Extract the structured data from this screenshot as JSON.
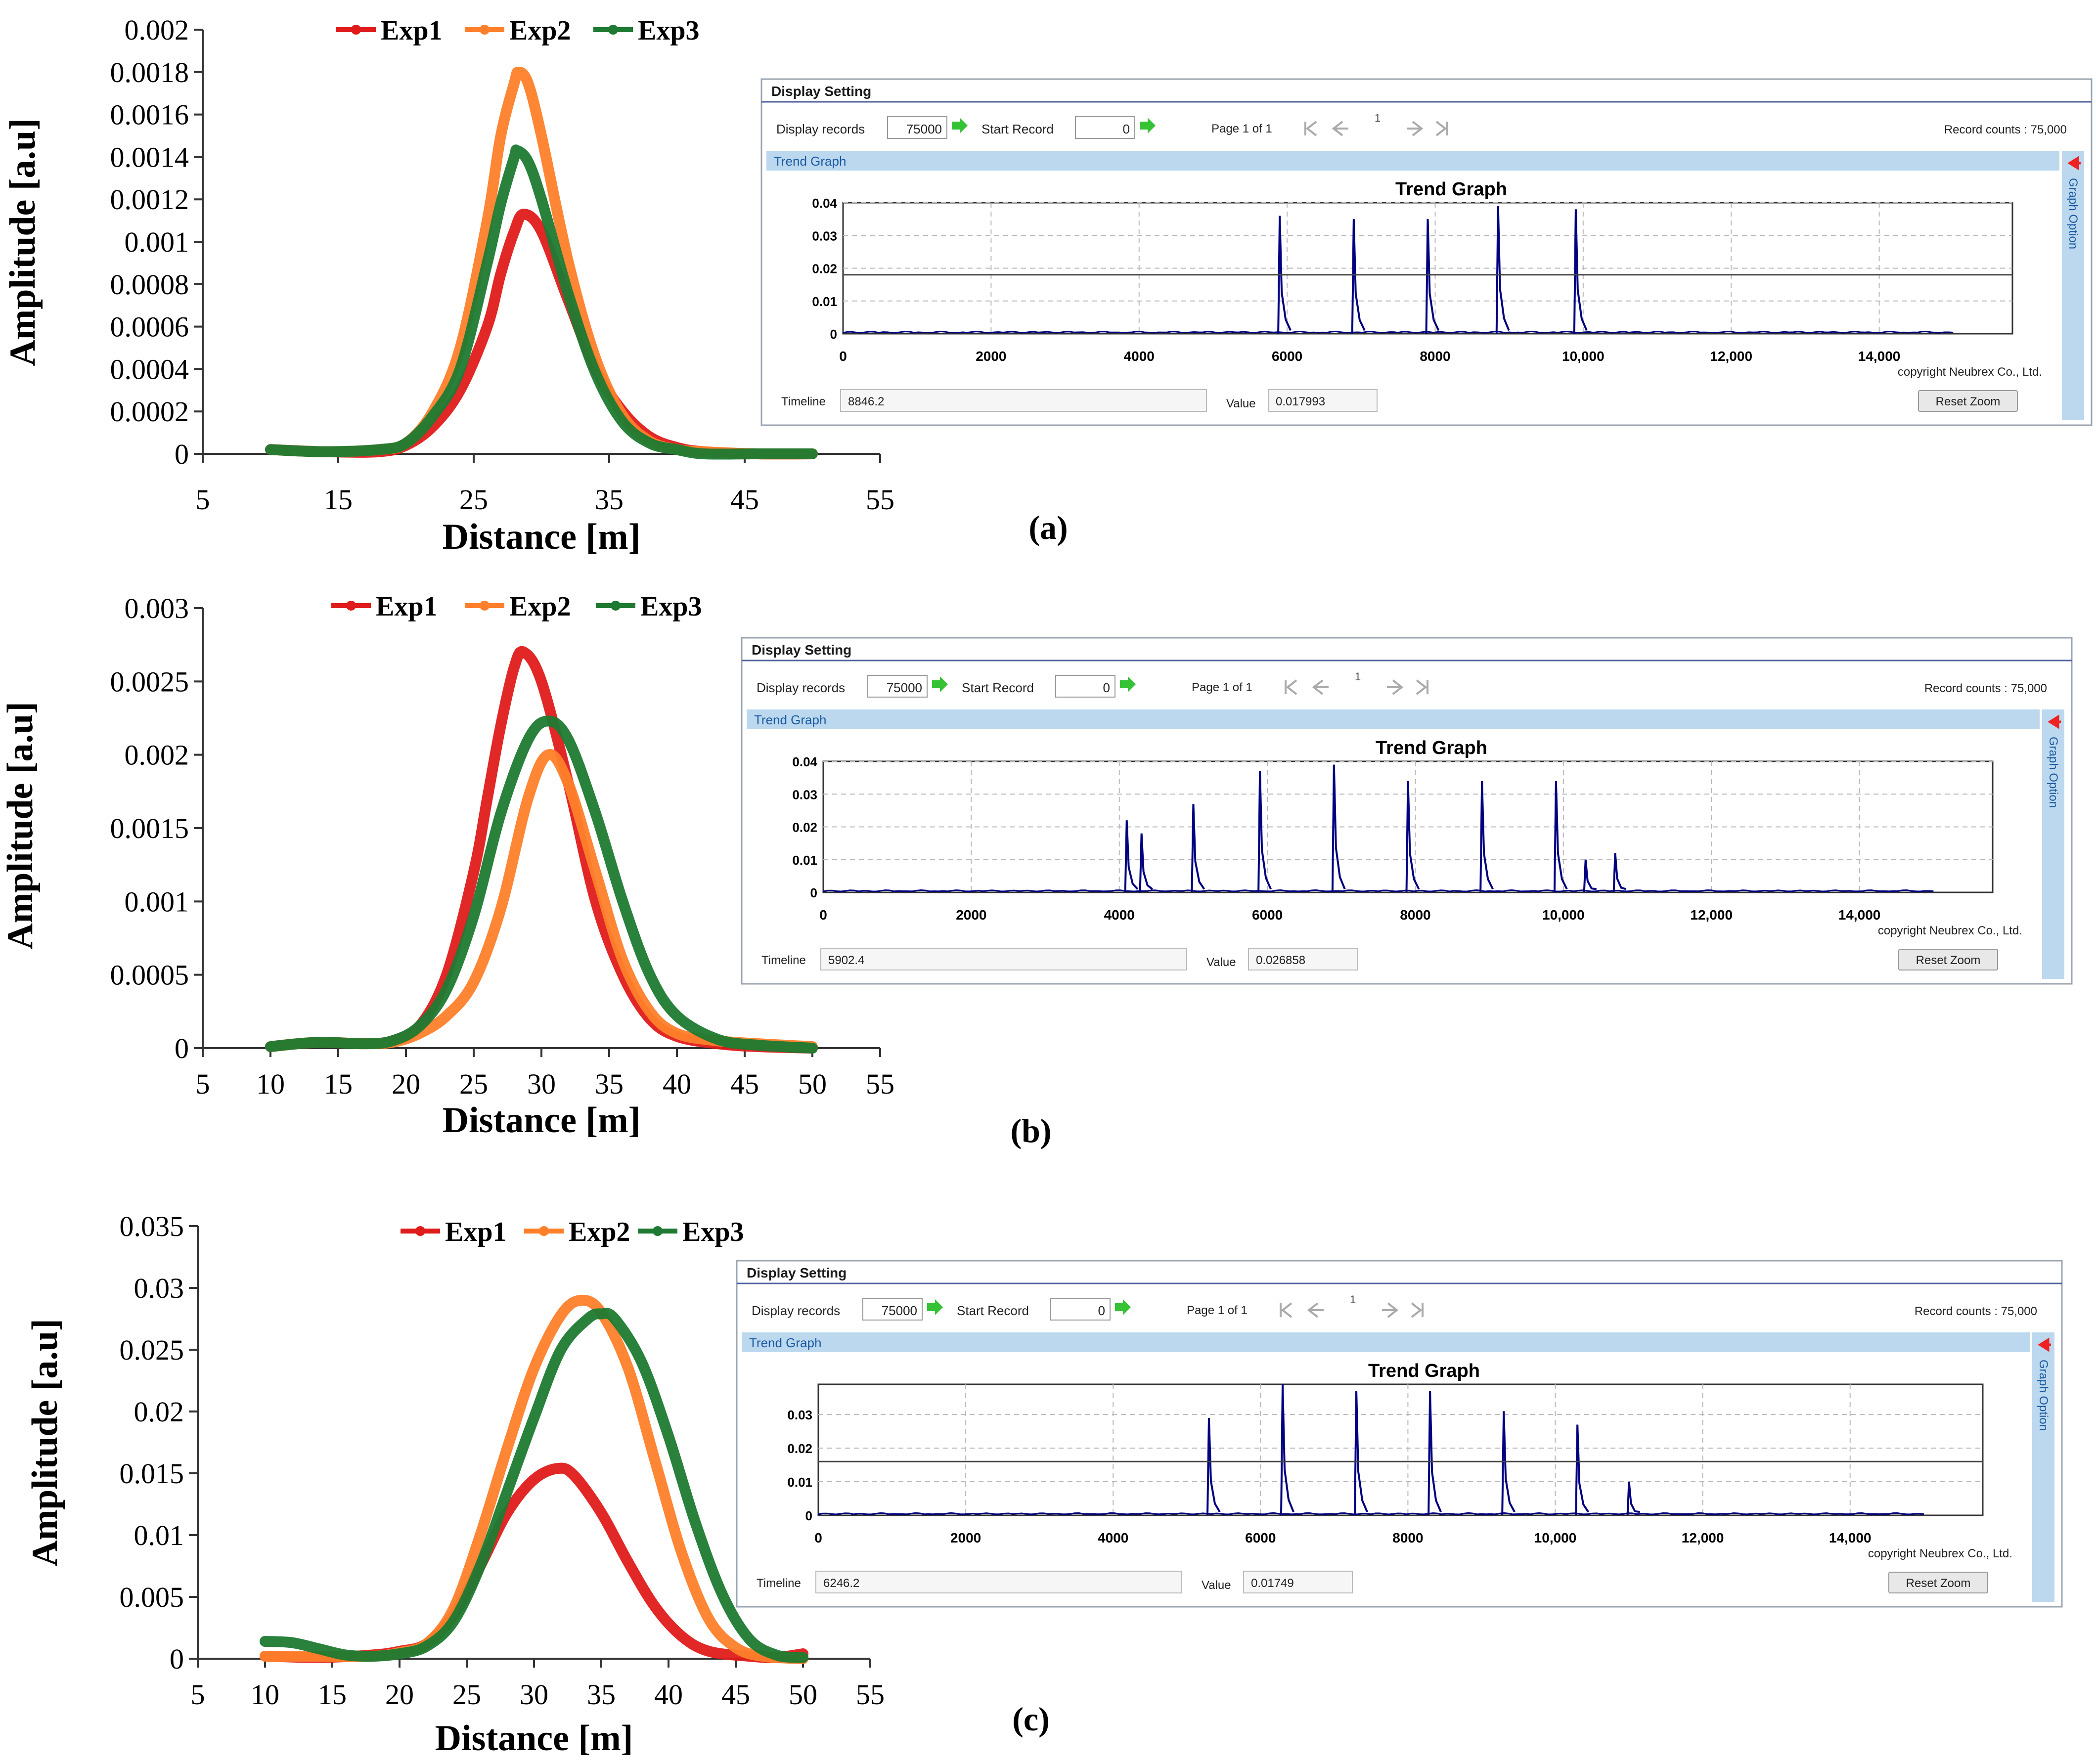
{
  "colors": {
    "exp1": "#e01b1b",
    "exp2": "#ff7f2a",
    "exp3": "#1e7a32",
    "trend": "#000080",
    "panelBlue": "#bcd8ef",
    "gridGray": "#b8b8b8"
  },
  "chart_data": [
    {
      "type": "line",
      "panel_label": "(a)",
      "xlabel": "Distance [m]",
      "ylabel": "Amplitude [a.u]",
      "xlim": [
        5,
        55
      ],
      "ylim": [
        0,
        0.002
      ],
      "xticks": [
        "5",
        "15",
        "25",
        "35",
        "45",
        "55"
      ],
      "yticks": [
        "0",
        "0.0002",
        "0.0004",
        "0.0006",
        "0.0008",
        "0.001",
        "0.0012",
        "0.0014",
        "0.0016",
        "0.0018",
        "0.002"
      ],
      "legend": [
        "Exp1",
        "Exp2",
        "Exp3"
      ],
      "series": [
        {
          "name": "Exp1",
          "points": [
            [
              10,
              2e-05
            ],
            [
              14,
              1e-05
            ],
            [
              18,
              1e-05
            ],
            [
              20,
              4e-05
            ],
            [
              22,
              0.00013
            ],
            [
              24,
              0.0003
            ],
            [
              26,
              0.0006
            ],
            [
              27,
              0.00085
            ],
            [
              28,
              0.00105
            ],
            [
              28.7,
              0.00113
            ],
            [
              30,
              0.00105
            ],
            [
              32,
              0.00072
            ],
            [
              34,
              0.0004
            ],
            [
              36,
              0.0002
            ],
            [
              38,
              8e-05
            ],
            [
              40,
              3e-05
            ],
            [
              42,
              1e-05
            ],
            [
              46,
              0
            ],
            [
              50,
              0
            ]
          ]
        },
        {
          "name": "Exp2",
          "points": [
            [
              10,
              2e-05
            ],
            [
              14,
              1e-05
            ],
            [
              18,
              2e-05
            ],
            [
              20,
              5e-05
            ],
            [
              22,
              0.0002
            ],
            [
              24,
              0.0005
            ],
            [
              26,
              0.0011
            ],
            [
              27,
              0.0015
            ],
            [
              28,
              0.00175
            ],
            [
              28.3,
              0.0018
            ],
            [
              29,
              0.00175
            ],
            [
              30,
              0.0015
            ],
            [
              32,
              0.0009
            ],
            [
              34,
              0.00045
            ],
            [
              36,
              0.00018
            ],
            [
              38,
              6e-05
            ],
            [
              40,
              2e-05
            ],
            [
              42,
              1e-05
            ],
            [
              46,
              0
            ],
            [
              50,
              0
            ]
          ]
        },
        {
          "name": "Exp3",
          "points": [
            [
              10,
              2e-05
            ],
            [
              14,
              1e-05
            ],
            [
              18,
              2e-05
            ],
            [
              20,
              5e-05
            ],
            [
              22,
              0.00018
            ],
            [
              24,
              0.0004
            ],
            [
              26,
              0.0009
            ],
            [
              27,
              0.00118
            ],
            [
              28,
              0.0014
            ],
            [
              28.2,
              0.00143
            ],
            [
              29,
              0.00138
            ],
            [
              30,
              0.0012
            ],
            [
              32,
              0.00075
            ],
            [
              34,
              0.00038
            ],
            [
              36,
              0.00015
            ],
            [
              38,
              5e-05
            ],
            [
              40,
              2e-05
            ],
            [
              42,
              0
            ],
            [
              46,
              0
            ],
            [
              50,
              0
            ]
          ]
        }
      ]
    },
    {
      "type": "line",
      "panel_label": "(b)",
      "xlabel": "Distance [m]",
      "ylabel": "Amplitude [a.u]",
      "xlim": [
        5,
        55
      ],
      "ylim": [
        0,
        0.003
      ],
      "xticks": [
        "5",
        "10",
        "15",
        "20",
        "25",
        "30",
        "35",
        "40",
        "45",
        "50",
        "55"
      ],
      "yticks": [
        "0",
        "0.0005",
        "0.001",
        "0.0015",
        "0.002",
        "0.0025",
        "0.003"
      ],
      "legend": [
        "Exp1",
        "Exp2",
        "Exp3"
      ],
      "series": [
        {
          "name": "Exp1",
          "points": [
            [
              10,
              1e-05
            ],
            [
              12,
              3e-05
            ],
            [
              14,
              4e-05
            ],
            [
              17,
              3e-05
            ],
            [
              19,
              5e-05
            ],
            [
              21,
              0.00015
            ],
            [
              23,
              0.0005
            ],
            [
              25,
              0.0012
            ],
            [
              26,
              0.0017
            ],
            [
              27,
              0.0022
            ],
            [
              28,
              0.0026
            ],
            [
              28.7,
              0.0027
            ],
            [
              30,
              0.0025
            ],
            [
              32,
              0.0018
            ],
            [
              34,
              0.001
            ],
            [
              36,
              0.0005
            ],
            [
              38,
              0.0002
            ],
            [
              40,
              8e-05
            ],
            [
              43,
              3e-05
            ],
            [
              46,
              1e-05
            ],
            [
              50,
              0
            ]
          ]
        },
        {
          "name": "Exp2",
          "points": [
            [
              10,
              1e-05
            ],
            [
              12,
              3e-05
            ],
            [
              14,
              4e-05
            ],
            [
              17,
              3e-05
            ],
            [
              19,
              4e-05
            ],
            [
              21,
              0.0001
            ],
            [
              23,
              0.00022
            ],
            [
              25,
              0.00045
            ],
            [
              27,
              0.00095
            ],
            [
              29,
              0.0017
            ],
            [
              30.5,
              0.002
            ],
            [
              32,
              0.0018
            ],
            [
              34,
              0.0012
            ],
            [
              36,
              0.0006
            ],
            [
              38,
              0.00025
            ],
            [
              40,
              0.0001
            ],
            [
              43,
              5e-05
            ],
            [
              46,
              3e-05
            ],
            [
              50,
              1e-05
            ]
          ]
        },
        {
          "name": "Exp3",
          "points": [
            [
              10,
              1e-05
            ],
            [
              12,
              3e-05
            ],
            [
              14,
              4e-05
            ],
            [
              17,
              3e-05
            ],
            [
              19,
              5e-05
            ],
            [
              21,
              0.00015
            ],
            [
              23,
              0.0004
            ],
            [
              25,
              0.0009
            ],
            [
              27,
              0.0016
            ],
            [
              29,
              0.0021
            ],
            [
              30.5,
              0.00223
            ],
            [
              32,
              0.0021
            ],
            [
              34,
              0.0016
            ],
            [
              36,
              0.001
            ],
            [
              38,
              0.0005
            ],
            [
              40,
              0.00022
            ],
            [
              43,
              6e-05
            ],
            [
              46,
              2e-05
            ],
            [
              50,
              0
            ]
          ]
        }
      ]
    },
    {
      "type": "line",
      "panel_label": "(c)",
      "xlabel": "Distance [m]",
      "ylabel": "Amplitude [a.u]",
      "xlim": [
        5,
        55
      ],
      "ylim": [
        0,
        0.035
      ],
      "xticks": [
        "5",
        "10",
        "15",
        "20",
        "25",
        "30",
        "35",
        "40",
        "45",
        "50",
        "55"
      ],
      "yticks": [
        "0",
        "0.005",
        "0.01",
        "0.015",
        "0.02",
        "0.025",
        "0.03",
        "0.035"
      ],
      "legend": [
        "Exp1",
        "Exp2",
        "Exp3"
      ],
      "series": [
        {
          "name": "Exp1",
          "points": [
            [
              10,
              0.0002
            ],
            [
              14,
              0.0001
            ],
            [
              18,
              0.0003
            ],
            [
              20,
              0.0006
            ],
            [
              22,
              0.0012
            ],
            [
              24,
              0.0035
            ],
            [
              26,
              0.0075
            ],
            [
              28,
              0.0118
            ],
            [
              30,
              0.0145
            ],
            [
              31.8,
              0.0154
            ],
            [
              33,
              0.0148
            ],
            [
              35,
              0.0118
            ],
            [
              37,
              0.0078
            ],
            [
              39,
              0.0042
            ],
            [
              41,
              0.0018
            ],
            [
              43,
              0.0006
            ],
            [
              46,
              0.0002
            ],
            [
              48,
              0.0001
            ],
            [
              50,
              0.0004
            ]
          ]
        },
        {
          "name": "Exp2",
          "points": [
            [
              10,
              0.0002
            ],
            [
              14,
              0.0002
            ],
            [
              18,
              0.0002
            ],
            [
              20,
              0.0005
            ],
            [
              22,
              0.0012
            ],
            [
              24,
              0.004
            ],
            [
              26,
              0.01
            ],
            [
              28,
              0.017
            ],
            [
              30,
              0.0235
            ],
            [
              32,
              0.0278
            ],
            [
              33.5,
              0.029
            ],
            [
              35,
              0.028
            ],
            [
              37,
              0.0235
            ],
            [
              39,
              0.016
            ],
            [
              41,
              0.0085
            ],
            [
              43,
              0.0032
            ],
            [
              45,
              0.0009
            ],
            [
              47,
              0.0002
            ],
            [
              50,
              0
            ]
          ]
        },
        {
          "name": "Exp3",
          "points": [
            [
              10,
              0.0014
            ],
            [
              12,
              0.0013
            ],
            [
              14,
              0.0008
            ],
            [
              16,
              0.0003
            ],
            [
              18,
              0.0002
            ],
            [
              20,
              0.0004
            ],
            [
              22,
              0.001
            ],
            [
              24,
              0.003
            ],
            [
              26,
              0.0075
            ],
            [
              28,
              0.0135
            ],
            [
              30,
              0.0195
            ],
            [
              32,
              0.025
            ],
            [
              34,
              0.0275
            ],
            [
              35,
              0.0279
            ],
            [
              36,
              0.0275
            ],
            [
              38,
              0.024
            ],
            [
              40,
              0.018
            ],
            [
              42,
              0.011
            ],
            [
              44,
              0.0052
            ],
            [
              46,
              0.0016
            ],
            [
              48,
              0.0003
            ],
            [
              50,
              0.0001
            ]
          ]
        }
      ]
    },
    {
      "type": "bar",
      "title": "Trend Graph",
      "xticks": [
        "0",
        "2000",
        "4000",
        "6000",
        "8000",
        "10,000",
        "12,000",
        "14,000"
      ],
      "yticks": [
        "0",
        "0.01",
        "0.02",
        "0.03",
        "0.04"
      ],
      "xlim": [
        0,
        15800
      ],
      "ylim": [
        0,
        0.04
      ],
      "peaks": [
        [
          5900,
          0.036
        ],
        [
          6900,
          0.035
        ],
        [
          7900,
          0.035
        ],
        [
          8850,
          0.039
        ],
        [
          9900,
          0.038
        ]
      ],
      "hline": 0.018
    },
    {
      "type": "bar",
      "title": "Trend Graph",
      "xticks": [
        "0",
        "2000",
        "4000",
        "6000",
        "8000",
        "10,000",
        "12,000",
        "14,000"
      ],
      "yticks": [
        "0",
        "0.01",
        "0.02",
        "0.03",
        "0.04"
      ],
      "xlim": [
        0,
        15800
      ],
      "ylim": [
        0,
        0.04
      ],
      "peaks": [
        [
          4100,
          0.022
        ],
        [
          4300,
          0.018
        ],
        [
          5000,
          0.027
        ],
        [
          5900,
          0.037
        ],
        [
          6900,
          0.039
        ],
        [
          7900,
          0.034
        ],
        [
          8900,
          0.034
        ],
        [
          9900,
          0.034
        ],
        [
          10300,
          0.01
        ],
        [
          10700,
          0.012
        ]
      ]
    },
    {
      "type": "bar",
      "title": "Trend Graph",
      "xticks": [
        "0",
        "2000",
        "4000",
        "6000",
        "8000",
        "10,000",
        "12,000",
        "14,000"
      ],
      "yticks": [
        "0",
        "0.01",
        "0.02",
        "0.03"
      ],
      "xlim": [
        0,
        15800
      ],
      "ylim": [
        0,
        0.039
      ],
      "peaks": [
        [
          5300,
          0.029
        ],
        [
          6300,
          0.039
        ],
        [
          7300,
          0.037
        ],
        [
          8300,
          0.037
        ],
        [
          9300,
          0.031
        ],
        [
          10300,
          0.027
        ],
        [
          11000,
          0.01
        ]
      ],
      "hline": 0.016
    }
  ],
  "screens": [
    {
      "display_setting": "Display Setting",
      "display_records_label": "Display records",
      "display_records_value": "75000",
      "start_record_label": "Start Record",
      "start_record_value": "0",
      "page_info": "Page 1 of 1",
      "page_number": "1",
      "record_counts": "Record counts :  75,000",
      "trend_tab": "Trend Graph",
      "graph_option": "Graph Option",
      "copyright": "copyright Neubrex Co., Ltd.",
      "timeline_label": "Timeline",
      "timeline_value": "8846.2",
      "value_label": "Value",
      "value_value": "0.017993",
      "reset_zoom": "Reset Zoom"
    },
    {
      "display_setting": "Display Setting",
      "display_records_label": "Display records",
      "display_records_value": "75000",
      "start_record_label": "Start Record",
      "start_record_value": "0",
      "page_info": "Page 1 of 1",
      "page_number": "1",
      "record_counts": "Record counts :  75,000",
      "trend_tab": "Trend Graph",
      "graph_option": "Graph Option",
      "copyright": "copyright Neubrex Co., Ltd.",
      "timeline_label": "Timeline",
      "timeline_value": "5902.4",
      "value_label": "Value",
      "value_value": "0.026858",
      "reset_zoom": "Reset Zoom"
    },
    {
      "display_setting": "Display Setting",
      "display_records_label": "Display records",
      "display_records_value": "75000",
      "start_record_label": "Start Record",
      "start_record_value": "0",
      "page_info": "Page 1 of 1",
      "page_number": "1",
      "record_counts": "Record counts :  75,000",
      "trend_tab": "Trend Graph",
      "graph_option": "Graph Option",
      "copyright": "copyright Neubrex Co., Ltd.",
      "timeline_label": "Timeline",
      "timeline_value": "6246.2",
      "value_label": "Value",
      "value_value": "0.01749",
      "reset_zoom": "Reset Zoom"
    }
  ]
}
